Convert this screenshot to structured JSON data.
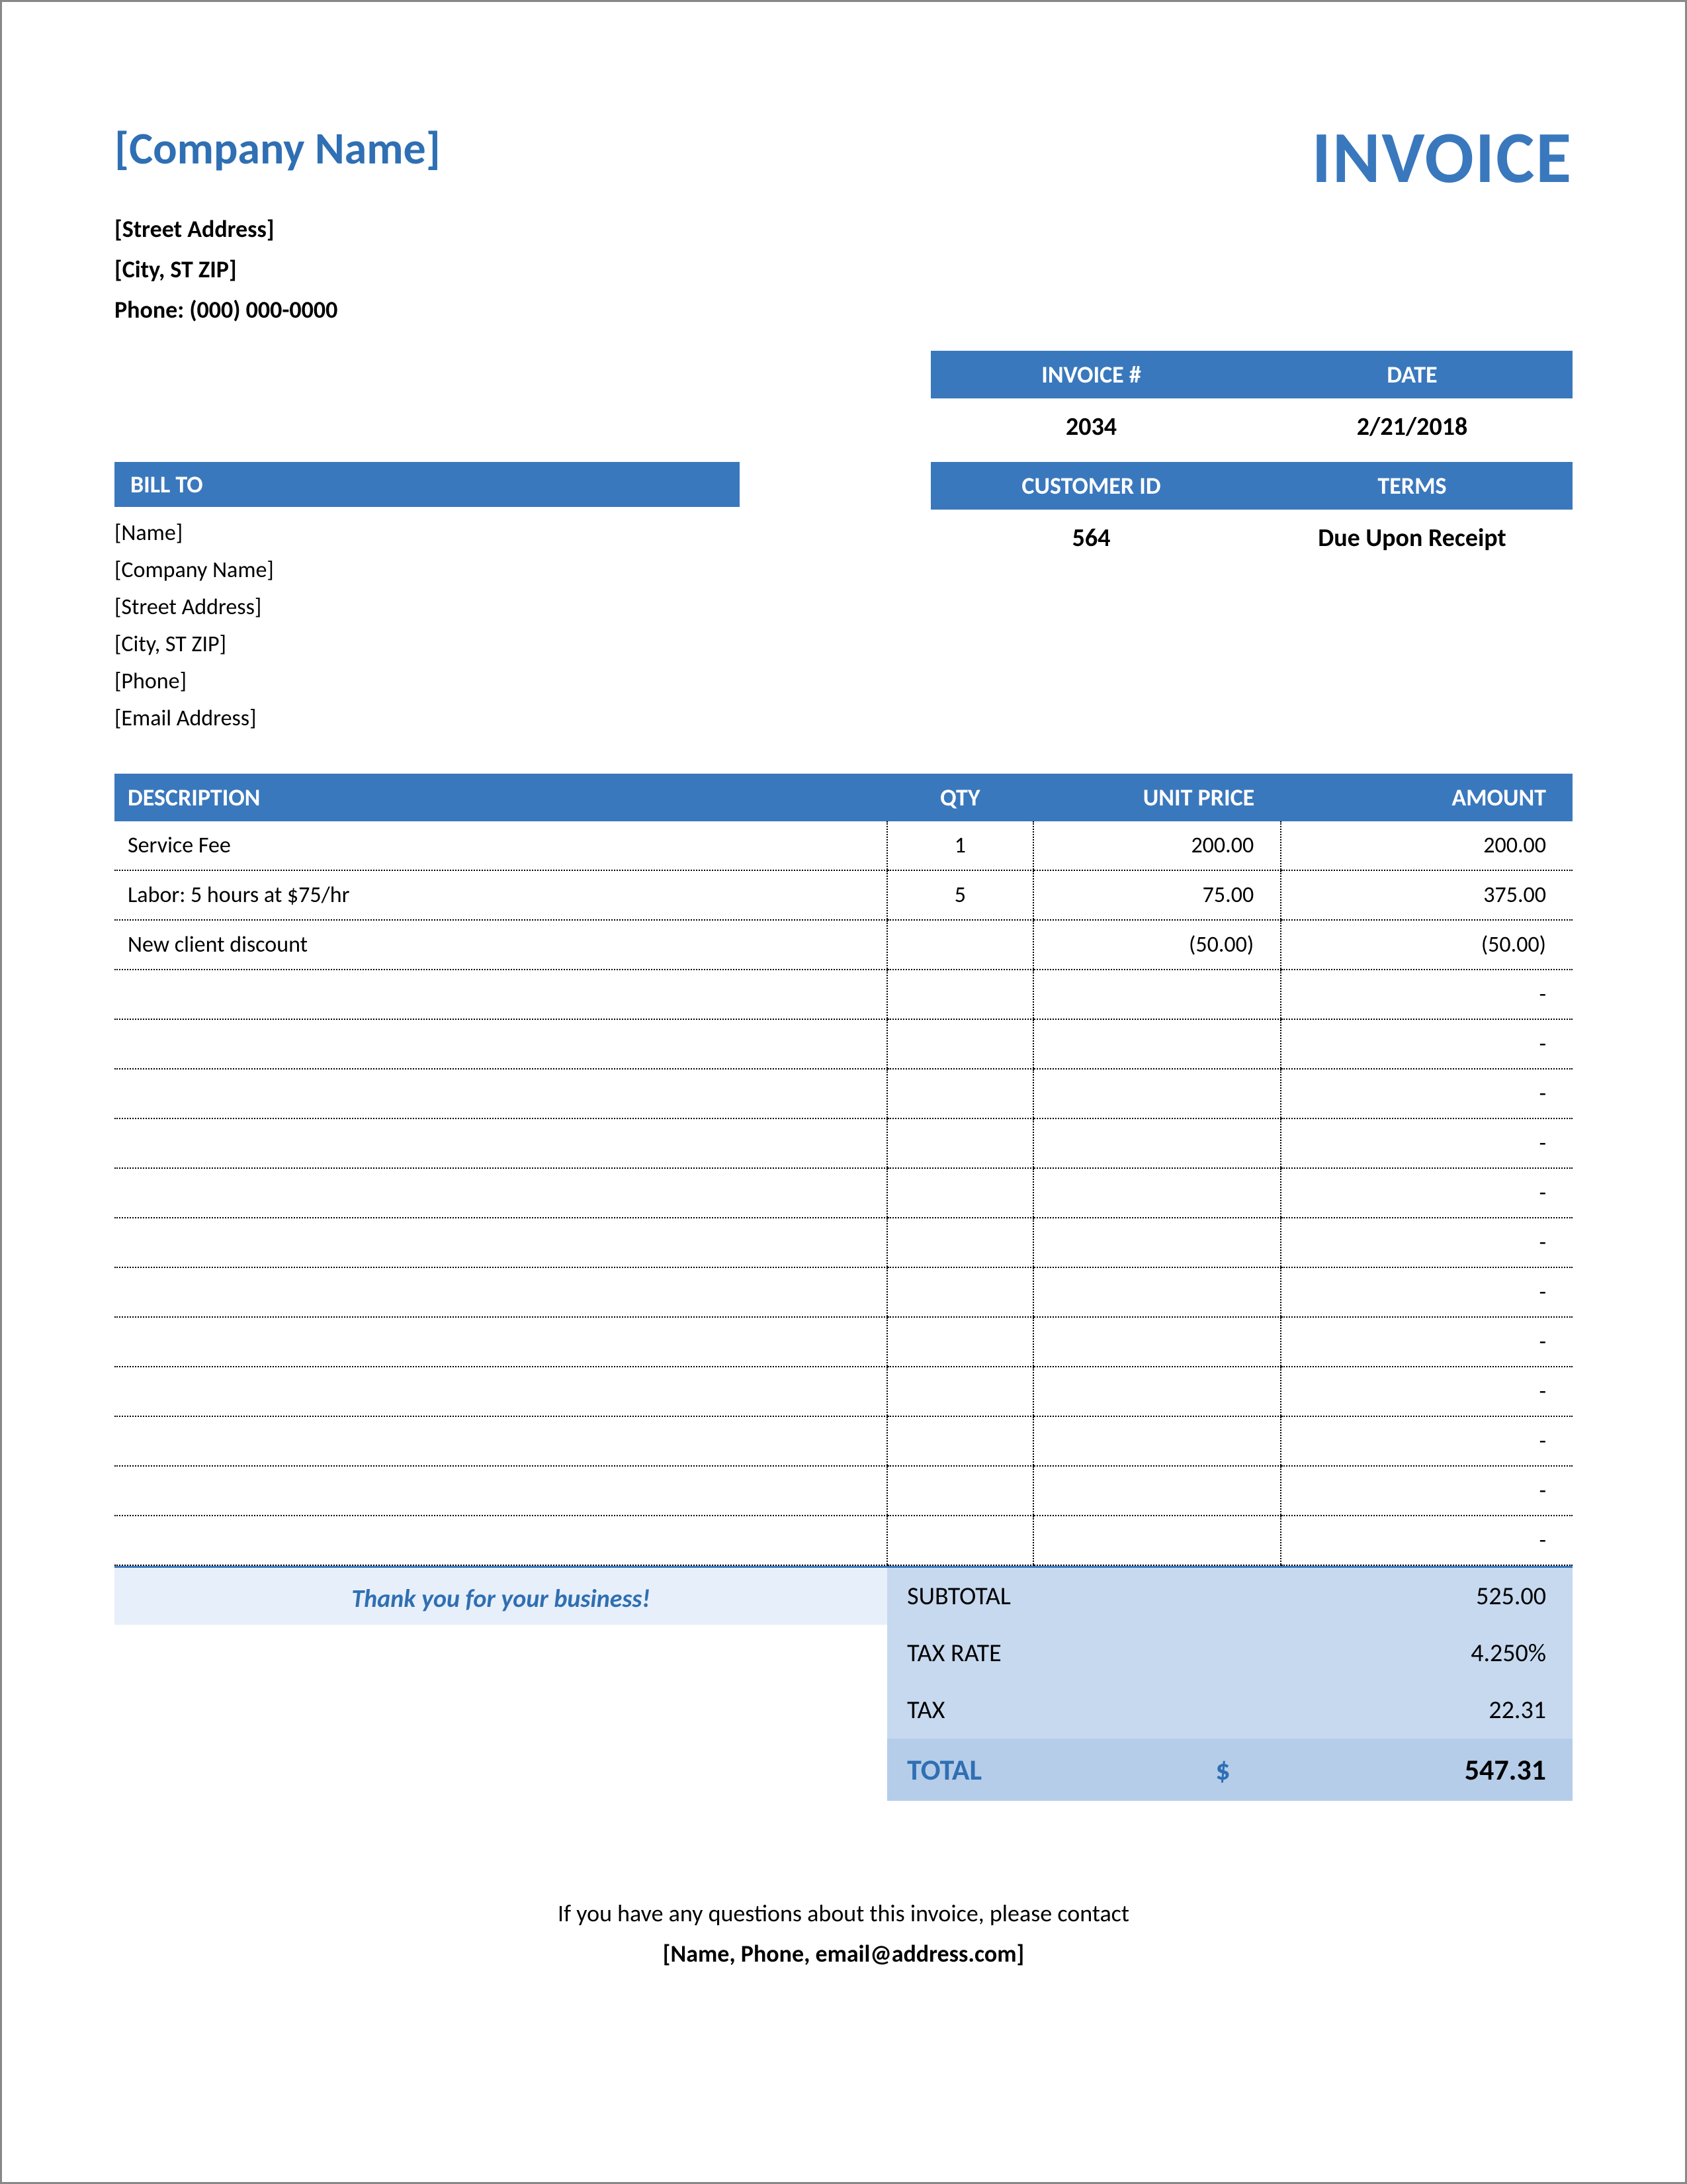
{
  "header": {
    "company_name": "[Company Name]",
    "invoice_title": "INVOICE",
    "street": "[Street Address]",
    "city": "[City, ST  ZIP]",
    "phone": "Phone: (000) 000-0000"
  },
  "meta": {
    "invoice_num_label": "INVOICE #",
    "date_label": "DATE",
    "invoice_num": "2034",
    "date": "2/21/2018",
    "customer_id_label": "CUSTOMER ID",
    "terms_label": "TERMS",
    "customer_id": "564",
    "terms": "Due Upon Receipt"
  },
  "billto": {
    "header": "BILL TO",
    "lines": [
      "[Name]",
      "[Company Name]",
      "[Street Address]",
      "[City, ST  ZIP]",
      "[Phone]",
      "[Email Address]"
    ]
  },
  "items": {
    "headers": {
      "desc": "DESCRIPTION",
      "qty": "QTY",
      "unit": "UNIT PRICE",
      "amt": "AMOUNT"
    },
    "rows": [
      {
        "desc": "Service Fee",
        "qty": "1",
        "unit": "200.00",
        "amt": "200.00"
      },
      {
        "desc": "Labor: 5 hours at $75/hr",
        "qty": "5",
        "unit": "75.00",
        "amt": "375.00"
      },
      {
        "desc": "New client discount",
        "qty": "",
        "unit": "(50.00)",
        "amt": "(50.00)"
      },
      {
        "desc": "",
        "qty": "",
        "unit": "",
        "amt": "-"
      },
      {
        "desc": "",
        "qty": "",
        "unit": "",
        "amt": "-"
      },
      {
        "desc": "",
        "qty": "",
        "unit": "",
        "amt": "-"
      },
      {
        "desc": "",
        "qty": "",
        "unit": "",
        "amt": "-"
      },
      {
        "desc": "",
        "qty": "",
        "unit": "",
        "amt": "-"
      },
      {
        "desc": "",
        "qty": "",
        "unit": "",
        "amt": "-"
      },
      {
        "desc": "",
        "qty": "",
        "unit": "",
        "amt": "-"
      },
      {
        "desc": "",
        "qty": "",
        "unit": "",
        "amt": "-"
      },
      {
        "desc": "",
        "qty": "",
        "unit": "",
        "amt": "-"
      },
      {
        "desc": "",
        "qty": "",
        "unit": "",
        "amt": "-"
      },
      {
        "desc": "",
        "qty": "",
        "unit": "",
        "amt": "-"
      },
      {
        "desc": "",
        "qty": "",
        "unit": "",
        "amt": "-"
      }
    ]
  },
  "totals": {
    "thanks": "Thank you for your business!",
    "subtotal_label": "SUBTOTAL",
    "subtotal": "525.00",
    "taxrate_label": "TAX RATE",
    "taxrate": "4.250%",
    "tax_label": "TAX",
    "tax": "22.31",
    "total_label": "TOTAL",
    "currency": "$",
    "total": "547.31"
  },
  "footer": {
    "line1": "If you have any questions about this invoice, please contact",
    "line2": "[Name, Phone, email@address.com]"
  },
  "style": {
    "accent_color": "#3a78bd",
    "light_blue": "#e7effa",
    "mid_blue": "#c7d9ef",
    "darker_blue": "#b5cde9"
  }
}
